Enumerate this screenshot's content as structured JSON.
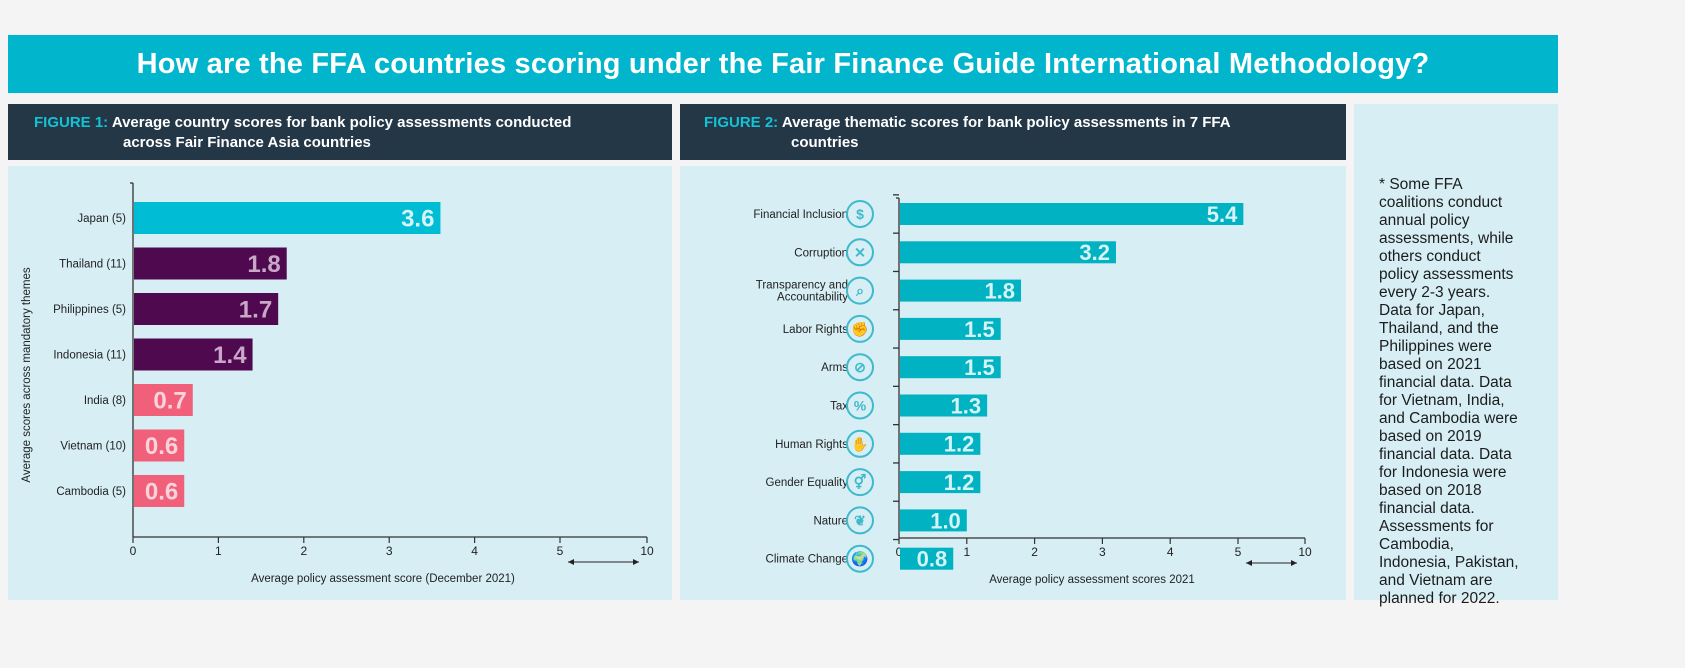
{
  "title": "How are the FFA countries scoring under the Fair Finance Guide International Methodology?",
  "figure1": {
    "label": "FIGURE 1:",
    "title_line1": "Average country scores for bank policy assessments conducted",
    "title_line2": "across Fair Finance Asia countries"
  },
  "figure2": {
    "label": "FIGURE 2:",
    "title_line1": "Average thematic scores for bank policy assessments in 7 FFA",
    "title_line2": "countries"
  },
  "note": {
    "lines": [
      "* Some FFA",
      "coalitions conduct",
      "annual policy",
      "assessments, while",
      "others conduct",
      "policy assessments",
      "every 2-3 years.",
      "Data for Japan,",
      "Thailand, and the",
      "Philippines were",
      "based on 2021",
      "financial data. Data",
      "for Vietnam, India,",
      "and Cambodia were",
      "based on 2019",
      "financial data. Data",
      "for Indonesia were",
      "based on 2018",
      "financial data.",
      "Assessments for",
      "Cambodia,",
      "Indonesia, Pakistan,",
      "and Vietnam are",
      "planned for 2022."
    ]
  },
  "chart_data": [
    {
      "type": "bar",
      "orientation": "horizontal",
      "categories": [
        "Japan (5)",
        "Thailand (11)",
        "Philippines (5)",
        "Indonesia (11)",
        "India (8)",
        "Vietnam (10)",
        "Cambodia (5)"
      ],
      "values": [
        3.6,
        1.8,
        1.7,
        1.4,
        0.7,
        0.6,
        0.6
      ],
      "data_labels": [
        "3.6",
        "1.8",
        "1.7",
        "1.4",
        "0.7",
        "0.6",
        "0.6"
      ],
      "bar_colors": [
        "#00bcd4",
        "#4f0a4f",
        "#4f0a4f",
        "#4f0a4f",
        "#f0607a",
        "#f0607a",
        "#f0607a"
      ],
      "label_colors": [
        "#d6f3f7",
        "#c9a7c9",
        "#c9a7c9",
        "#c9a7c9",
        "#fcd3db",
        "#fcd3db",
        "#fcd3db"
      ],
      "xlabel": "Average policy assessment score (December 2021)",
      "ylabel": "Average scores across mandatory themes",
      "xticks": [
        "0",
        "1",
        "2",
        "3",
        "4",
        "5",
        "10"
      ],
      "xlim": [
        0,
        10
      ],
      "axis_break": "between 5 and 10",
      "grid": false
    },
    {
      "type": "bar",
      "orientation": "horizontal",
      "categories": [
        "Financial Inclusion",
        "Corruption",
        "Transparency and Accountability",
        "Labor Rights",
        "Arms",
        "Tax",
        "Human Rights",
        "Gender Equality",
        "Nature",
        "Climate Change"
      ],
      "category_lines": [
        [
          "Financial Inclusion"
        ],
        [
          "Corruption"
        ],
        [
          "Transparency and",
          "Accountability"
        ],
        [
          "Labor Rights"
        ],
        [
          "Arms"
        ],
        [
          "Tax"
        ],
        [
          "Human Rights"
        ],
        [
          "Gender Equality"
        ],
        [
          "Nature"
        ],
        [
          "Climate Change"
        ]
      ],
      "icons": [
        "financial-inclusion-icon",
        "corruption-icon",
        "transparency-icon",
        "labor-rights-icon",
        "arms-icon",
        "tax-icon",
        "human-rights-icon",
        "gender-equality-icon",
        "nature-icon",
        "climate-change-icon"
      ],
      "icon_glyphs": [
        "$",
        "✕",
        "⌕",
        "✊",
        "⊘",
        "%",
        "✋",
        "⚥",
        "❦",
        "🌍"
      ],
      "values": [
        5.4,
        3.2,
        1.8,
        1.5,
        1.5,
        1.3,
        1.2,
        1.2,
        1.0,
        0.8
      ],
      "data_labels": [
        "5.4",
        "3.2",
        "1.8",
        "1.5",
        "1.5",
        "1.3",
        "1.2",
        "1.2",
        "1.0",
        "0.8"
      ],
      "bar_color": "#00b2c2",
      "label_color": "#d6f3f7",
      "icon_color": "#3fb9cc",
      "xlabel": "Average policy assessment scores 2021",
      "xticks": [
        "0",
        "1",
        "2",
        "3",
        "4",
        "5",
        "10"
      ],
      "xlim": [
        0,
        10
      ],
      "axis_break": "between 5 and 10",
      "grid": false
    }
  ]
}
